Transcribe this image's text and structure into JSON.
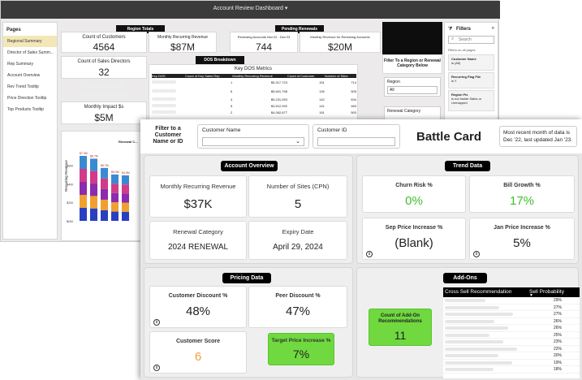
{
  "dashboard": {
    "title": "Account Review Dashboard",
    "pages_header": "Pages",
    "pages": [
      "Regional Summary",
      "Director of Sales Summ...",
      "Rep Summary",
      "Account Overview",
      "Rev Trend Tooltip",
      "Price Direction Tooltip",
      "Top Products Tooltip"
    ],
    "region_totals": {
      "header": "Region Totals",
      "customers_label": "Count of Customers",
      "customers_value": "4564",
      "mrr_label": "Monthly Recurring Revenue",
      "mrr_value": "$87M"
    },
    "pending_renewals": {
      "header": "Pending Renewals",
      "accounts_label": "Renewing Accounts Nov'22 - Dec'23",
      "accounts_value": "744",
      "revenue_label": "Monthly Revenue for Renewing Accounts",
      "revenue_value": "$20M"
    },
    "directors_label": "Count of Sales Directors",
    "directors_value": "32",
    "impact_label": "Monthly Impact $s",
    "impact_value": "$5M",
    "dos_breakdown": {
      "header": "DOS Breakdown",
      "metrics_title": "Key DOS Metrics",
      "columns": [
        "Key DOS",
        "Count of Key Sales Rep",
        "Monthly Recurring Revenue",
        "Count of Customer",
        "Number of Sites"
      ],
      "rows": [
        [
          "",
          "1",
          "$5,317,723",
          "151",
          "714"
        ],
        [
          "",
          "6",
          "$5,601,758",
          "126",
          "505"
        ],
        [
          "",
          "4",
          "$5,231,053",
          "142",
          "634"
        ],
        [
          "",
          "5",
          "$4,512,992",
          "141",
          "469"
        ],
        [
          "",
          "2",
          "$4,062,677",
          "151",
          "500"
        ]
      ]
    },
    "revenue_chart_title": "Renewal C...",
    "revenue_axis_label": "Recurring Revenue",
    "chart_data": {
      "type": "bar",
      "title": "Renewal C...",
      "ylabel": "Recurring Revenue",
      "bar_labels": [
        "$7.0M",
        "$6.7M",
        "$5.7M",
        "$5.0M",
        "$4.9M"
      ],
      "tick_labels": [
        "$6M",
        "$4M",
        "$2M",
        "$0M"
      ],
      "ylim": [
        0,
        7
      ],
      "values": [
        7.0,
        6.7,
        5.7,
        5.0,
        4.9
      ]
    },
    "filter_title_left": "Filter To a Region or Renewal Category Below",
    "region_label": "Region",
    "region_value": "All",
    "renewal_category_label": "Renewal Category",
    "filters": {
      "title": "Filters",
      "search_placeholder": "Search",
      "section_label": "Filters on all pages",
      "items": [
        {
          "name": "Customer Name",
          "value": "is (All)"
        },
        {
          "name": "Recurring Flag File",
          "value": "is Y"
        },
        {
          "name": "Region Fix",
          "value": "is not Inside Sales or Unmapped"
        }
      ]
    }
  },
  "battle_card": {
    "filter_prompt": "Filter to a Customer Name or ID",
    "customer_name_label": "Customer Name",
    "customer_id_label": "Customer ID",
    "title": "Battle Card",
    "data_note": "Most recent month of data is Dec '22, last updated Jan '23.",
    "account_overview": {
      "header": "Account Overview",
      "mrr_label": "Monthly Recurring Revenue",
      "mrr_value": "$37K",
      "sites_label": "Number of Sites (CPN)",
      "sites_value": "5",
      "renewal_label": "Renewal Category",
      "renewal_value": "2024 RENEWAL",
      "expiry_label": "Expiry Date",
      "expiry_value": "April 29, 2024"
    },
    "trend_data": {
      "header": "Trend Data",
      "churn_label": "Churn Risk %",
      "churn_value": "0%",
      "bill_label": "Bill Growth %",
      "bill_value": "17%",
      "sep_label": "Sep Price Increase %",
      "sep_value": "(Blank)",
      "jan_label": "Jan Price Increase %",
      "jan_value": "5%"
    },
    "pricing_data": {
      "header": "Pricing Data",
      "cust_disc_label": "Customer Discount %",
      "cust_disc_value": "48%",
      "peer_disc_label": "Peer Discount %",
      "peer_disc_value": "47%",
      "score_label": "Customer Score",
      "score_value": "6",
      "target_label": "Target Price Increase %",
      "target_value": "7%"
    },
    "add_ons": {
      "header": "Add-Ons",
      "count_label": "Count of Add-On Recommendations",
      "count_value": "11",
      "col1": "Cross Sell Recommendation",
      "col2": "Sell Probability",
      "probabilities": [
        "29%",
        "27%",
        "27%",
        "26%",
        "26%",
        "25%",
        "23%",
        "22%",
        "20%",
        "19%",
        "18%"
      ]
    },
    "info_glyph": "i"
  },
  "colors": {
    "green_highlight": "#6fd93f",
    "score_orange": "#f0a040",
    "header_black": "#000000"
  }
}
